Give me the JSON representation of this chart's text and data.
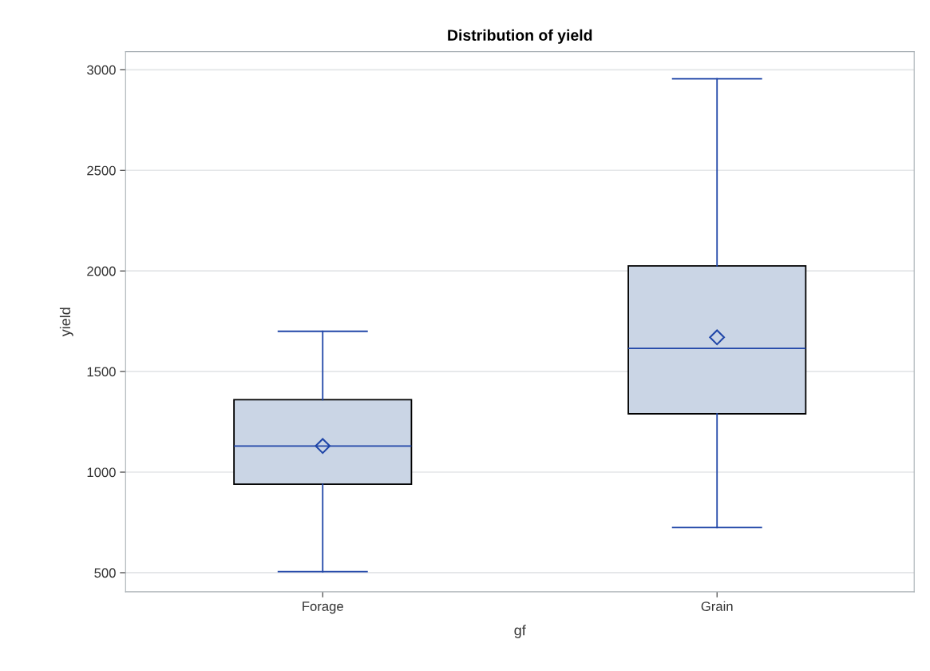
{
  "chart_data": {
    "type": "box",
    "title": "Distribution of yield",
    "xlabel": "gf",
    "ylabel": "yield",
    "categories": [
      "Forage",
      "Grain"
    ],
    "boxes": [
      {
        "low": 505,
        "q1": 940,
        "median": 1130,
        "q3": 1360,
        "high": 1700,
        "mean": 1130
      },
      {
        "low": 725,
        "q1": 1290,
        "median": 1615,
        "q3": 2025,
        "high": 2955,
        "mean": 1670
      }
    ],
    "color": "#cad5e5",
    "ylim": [
      405,
      3090
    ],
    "yticks": [
      500,
      1000,
      1500,
      2000,
      2500,
      3000
    ],
    "grid": "y",
    "marker": "diamond"
  }
}
